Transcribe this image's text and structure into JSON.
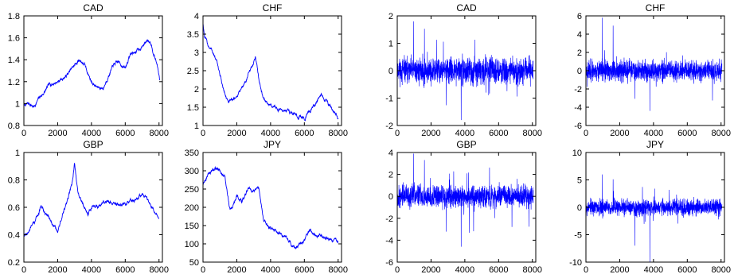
{
  "chart_data": [
    {
      "type": "line",
      "title": "CAD",
      "xlim": [
        0,
        8200
      ],
      "ylim": [
        0.8,
        1.8
      ],
      "xticks": [
        0,
        2000,
        4000,
        6000,
        8000
      ],
      "xtick_labels": [
        "0",
        "2000",
        "4000",
        "6000",
        "8000"
      ],
      "yticks": [
        0.8,
        1,
        1.2,
        1.4,
        1.6,
        1.8
      ],
      "ytick_labels": [
        "0.8",
        "1",
        "1.2",
        "1.4",
        "1.6",
        "1.8"
      ],
      "color": "#0000ff",
      "style": "trend",
      "noise": 0.008,
      "series": [
        {
          "x": [
            0,
            300,
            600,
            900,
            1200,
            1500,
            2000,
            2500,
            3000,
            3300,
            3600,
            4000,
            4300,
            4700,
            5000,
            5300,
            5600,
            6000,
            6300,
            6600,
            7000,
            7300,
            7500,
            7700,
            7900,
            8050
          ],
          "values": [
            0.98,
            1.0,
            0.97,
            1.05,
            1.1,
            1.17,
            1.2,
            1.25,
            1.35,
            1.4,
            1.35,
            1.2,
            1.15,
            1.14,
            1.25,
            1.35,
            1.38,
            1.32,
            1.45,
            1.47,
            1.52,
            1.58,
            1.57,
            1.45,
            1.35,
            1.2
          ]
        }
      ]
    },
    {
      "type": "line",
      "title": "CHF",
      "xlim": [
        0,
        8200
      ],
      "ylim": [
        1,
        4
      ],
      "xticks": [
        0,
        2000,
        4000,
        6000,
        8000
      ],
      "xtick_labels": [
        "0",
        "2000",
        "4000",
        "6000",
        "8000"
      ],
      "yticks": [
        1,
        1.5,
        2,
        2.5,
        3,
        3.5,
        4
      ],
      "ytick_labels": [
        "1",
        "1.5",
        "2",
        "2.5",
        "3",
        "3.5",
        "4"
      ],
      "color": "#0000ff",
      "style": "trend",
      "noise": 0.025,
      "series": [
        {
          "x": [
            0,
            100,
            300,
            600,
            900,
            1200,
            1500,
            2000,
            2500,
            3000,
            3100,
            3300,
            3600,
            4000,
            4500,
            5000,
            5500,
            6000,
            6500,
            7000,
            7300,
            7600,
            8000
          ],
          "values": [
            3.8,
            3.4,
            3.2,
            3.0,
            2.6,
            2.0,
            1.6,
            1.8,
            2.2,
            2.7,
            2.9,
            2.3,
            1.7,
            1.55,
            1.45,
            1.4,
            1.3,
            1.2,
            1.5,
            1.8,
            1.7,
            1.45,
            1.2
          ]
        }
      ]
    },
    {
      "type": "line",
      "title": "CAD",
      "xlim": [
        0,
        8200
      ],
      "ylim": [
        -2,
        2
      ],
      "xticks": [
        0,
        2000,
        4000,
        6000,
        8000
      ],
      "xtick_labels": [
        "0",
        "2000",
        "4000",
        "6000",
        "8000"
      ],
      "yticks": [
        -2,
        -1,
        0,
        1,
        2
      ],
      "ytick_labels": [
        "-2",
        "-1",
        "0",
        "1",
        "2"
      ],
      "color": "#0000ff",
      "style": "returns",
      "amplitude": 0.22,
      "spike": 1.8,
      "spike_down": -1.8,
      "seed": 11,
      "series": [
        {
          "x": [
            0,
            8050
          ]
        }
      ]
    },
    {
      "type": "line",
      "title": "CHF",
      "xlim": [
        0,
        8200
      ],
      "ylim": [
        -6,
        6
      ],
      "xticks": [
        0,
        2000,
        4000,
        6000,
        8000
      ],
      "xtick_labels": [
        "0",
        "2000",
        "4000",
        "6000",
        "8000"
      ],
      "yticks": [
        -6,
        -4,
        -2,
        0,
        2,
        4,
        6
      ],
      "ytick_labels": [
        "-6",
        "-4",
        "-2",
        "0",
        "2",
        "4",
        "6"
      ],
      "color": "#0000ff",
      "style": "returns",
      "amplitude": 0.55,
      "spike": 5.8,
      "spike_down": -4.4,
      "seed": 23,
      "series": [
        {
          "x": [
            0,
            8050
          ]
        }
      ]
    },
    {
      "type": "line",
      "title": "GBP",
      "xlim": [
        0,
        8200
      ],
      "ylim": [
        0.2,
        1
      ],
      "xticks": [
        0,
        2000,
        4000,
        6000,
        8000
      ],
      "xtick_labels": [
        "0",
        "2000",
        "4000",
        "6000",
        "8000"
      ],
      "yticks": [
        0.2,
        0.4,
        0.6,
        0.8,
        1
      ],
      "ytick_labels": [
        "0.2",
        "0.4",
        "0.6",
        "0.8",
        "1"
      ],
      "color": "#0000ff",
      "style": "trend",
      "noise": 0.007,
      "series": [
        {
          "x": [
            0,
            300,
            600,
            1000,
            1300,
            1600,
            2000,
            2300,
            2600,
            2900,
            3000,
            3200,
            3500,
            3800,
            4100,
            4400,
            5000,
            5500,
            6000,
            6500,
            7000,
            7300,
            7600,
            8000
          ],
          "values": [
            0.4,
            0.42,
            0.48,
            0.6,
            0.55,
            0.5,
            0.42,
            0.55,
            0.65,
            0.8,
            0.93,
            0.7,
            0.62,
            0.55,
            0.62,
            0.6,
            0.65,
            0.63,
            0.62,
            0.65,
            0.7,
            0.65,
            0.58,
            0.52
          ]
        }
      ]
    },
    {
      "type": "line",
      "title": "JPY",
      "xlim": [
        0,
        8200
      ],
      "ylim": [
        50,
        350
      ],
      "xticks": [
        0,
        2000,
        4000,
        6000,
        8000
      ],
      "xtick_labels": [
        "0",
        "2000",
        "4000",
        "6000",
        "8000"
      ],
      "yticks": [
        50,
        100,
        150,
        200,
        250,
        300,
        350
      ],
      "ytick_labels": [
        "50",
        "100",
        "150",
        "200",
        "250",
        "300",
        "350"
      ],
      "color": "#0000ff",
      "style": "trend",
      "noise": 2.5,
      "series": [
        {
          "x": [
            0,
            300,
            700,
            1000,
            1300,
            1600,
            2000,
            2300,
            2700,
            3000,
            3300,
            3600,
            4000,
            4500,
            5000,
            5500,
            6000,
            6300,
            6700,
            7000,
            7500,
            8000
          ],
          "values": [
            260,
            290,
            305,
            300,
            280,
            190,
            230,
            215,
            255,
            240,
            255,
            165,
            140,
            130,
            115,
            85,
            110,
            140,
            120,
            125,
            110,
            105
          ]
        }
      ]
    },
    {
      "type": "line",
      "title": "GBP",
      "xlim": [
        0,
        8200
      ],
      "ylim": [
        -6,
        4
      ],
      "xticks": [
        0,
        2000,
        4000,
        6000,
        8000
      ],
      "xtick_labels": [
        "0",
        "2000",
        "4000",
        "6000",
        "8000"
      ],
      "yticks": [
        -6,
        -4,
        -2,
        0,
        2,
        4
      ],
      "ytick_labels": [
        "-6",
        "-4",
        "-2",
        "0",
        "2",
        "4"
      ],
      "color": "#0000ff",
      "style": "returns",
      "amplitude": 0.5,
      "spike": 3.9,
      "spike_down": -4.6,
      "seed": 37,
      "series": [
        {
          "x": [
            0,
            8050
          ]
        }
      ]
    },
    {
      "type": "line",
      "title": "JPY",
      "xlim": [
        0,
        8200
      ],
      "ylim": [
        -10,
        10
      ],
      "xticks": [
        0,
        2000,
        4000,
        6000,
        8000
      ],
      "xtick_labels": [
        "0",
        "2000",
        "4000",
        "6000",
        "8000"
      ],
      "yticks": [
        -10,
        -5,
        0,
        5,
        10
      ],
      "ytick_labels": [
        "-10",
        "-5",
        "0",
        "5",
        "10"
      ],
      "color": "#0000ff",
      "style": "returns",
      "amplitude": 0.7,
      "spike": 6.0,
      "spike_down": -10.0,
      "seed": 53,
      "series": [
        {
          "x": [
            0,
            8050
          ]
        }
      ]
    }
  ]
}
